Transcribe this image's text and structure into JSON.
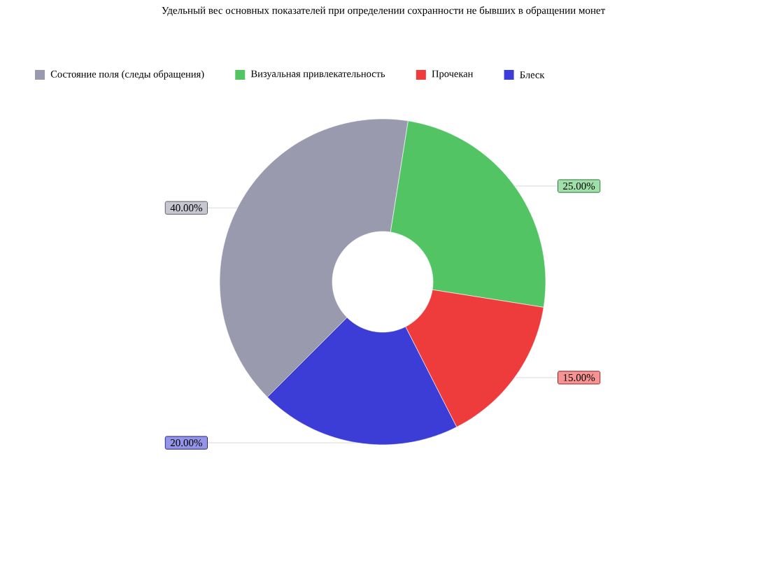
{
  "chart_data": {
    "type": "donut",
    "title": "Удельный вес основных показателей при определении сохранности не бывших в обращении монет",
    "categories": [
      "Состояние поля (следы обращения)",
      "Визуальная привлекательность",
      "Прочекан",
      "Блеск"
    ],
    "values": [
      40,
      25,
      15,
      20
    ],
    "colors": [
      "#9a9aae",
      "#52c464",
      "#ee3b3b",
      "#3c3cd6"
    ],
    "value_labels": [
      "40.00%",
      "25.00%",
      "15.00%",
      "20.00%"
    ],
    "legend": "top"
  }
}
